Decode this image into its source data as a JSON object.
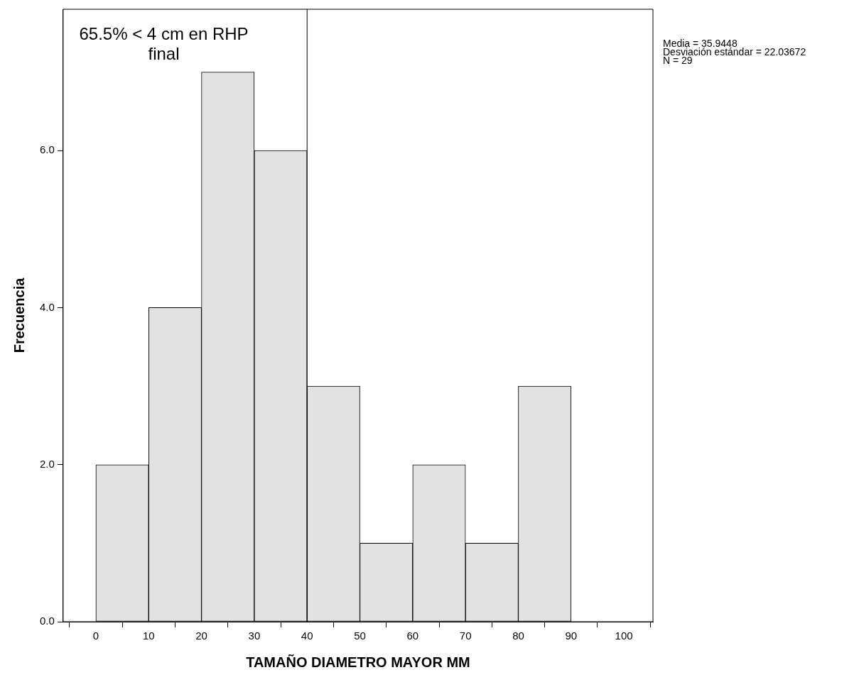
{
  "chart_data": {
    "type": "histogram",
    "xlabel": "TAMAÑO DIAMETRO MAYOR MM",
    "ylabel": "Frecuencia",
    "bins": [
      0,
      10,
      20,
      30,
      40,
      50,
      60,
      70,
      80,
      90
    ],
    "values": [
      2,
      4,
      7,
      6,
      3,
      1,
      2,
      1,
      3
    ],
    "color": "#e2e2e2",
    "xlim": [
      -6.2,
      105.5
    ],
    "xticks": [
      0,
      10,
      20,
      30,
      40,
      50,
      60,
      70,
      80,
      90,
      100
    ],
    "ylim": [
      0,
      7.8
    ],
    "yticks": [
      {
        "value": 0,
        "label": "0.0"
      },
      {
        "value": 2,
        "label": "2.0"
      },
      {
        "value": 4,
        "label": "4.0"
      },
      {
        "value": 6,
        "label": "6.0"
      }
    ],
    "ref_lines": [
      {
        "axis": "x",
        "value": 40,
        "label": "65.5% < 4 cm en RHP final",
        "color": "#000000"
      }
    ],
    "annotations": [
      "Media = 35.9448",
      "Desviación estándar = 22.03672",
      "N = 29"
    ],
    "grid": false,
    "legend": false
  }
}
